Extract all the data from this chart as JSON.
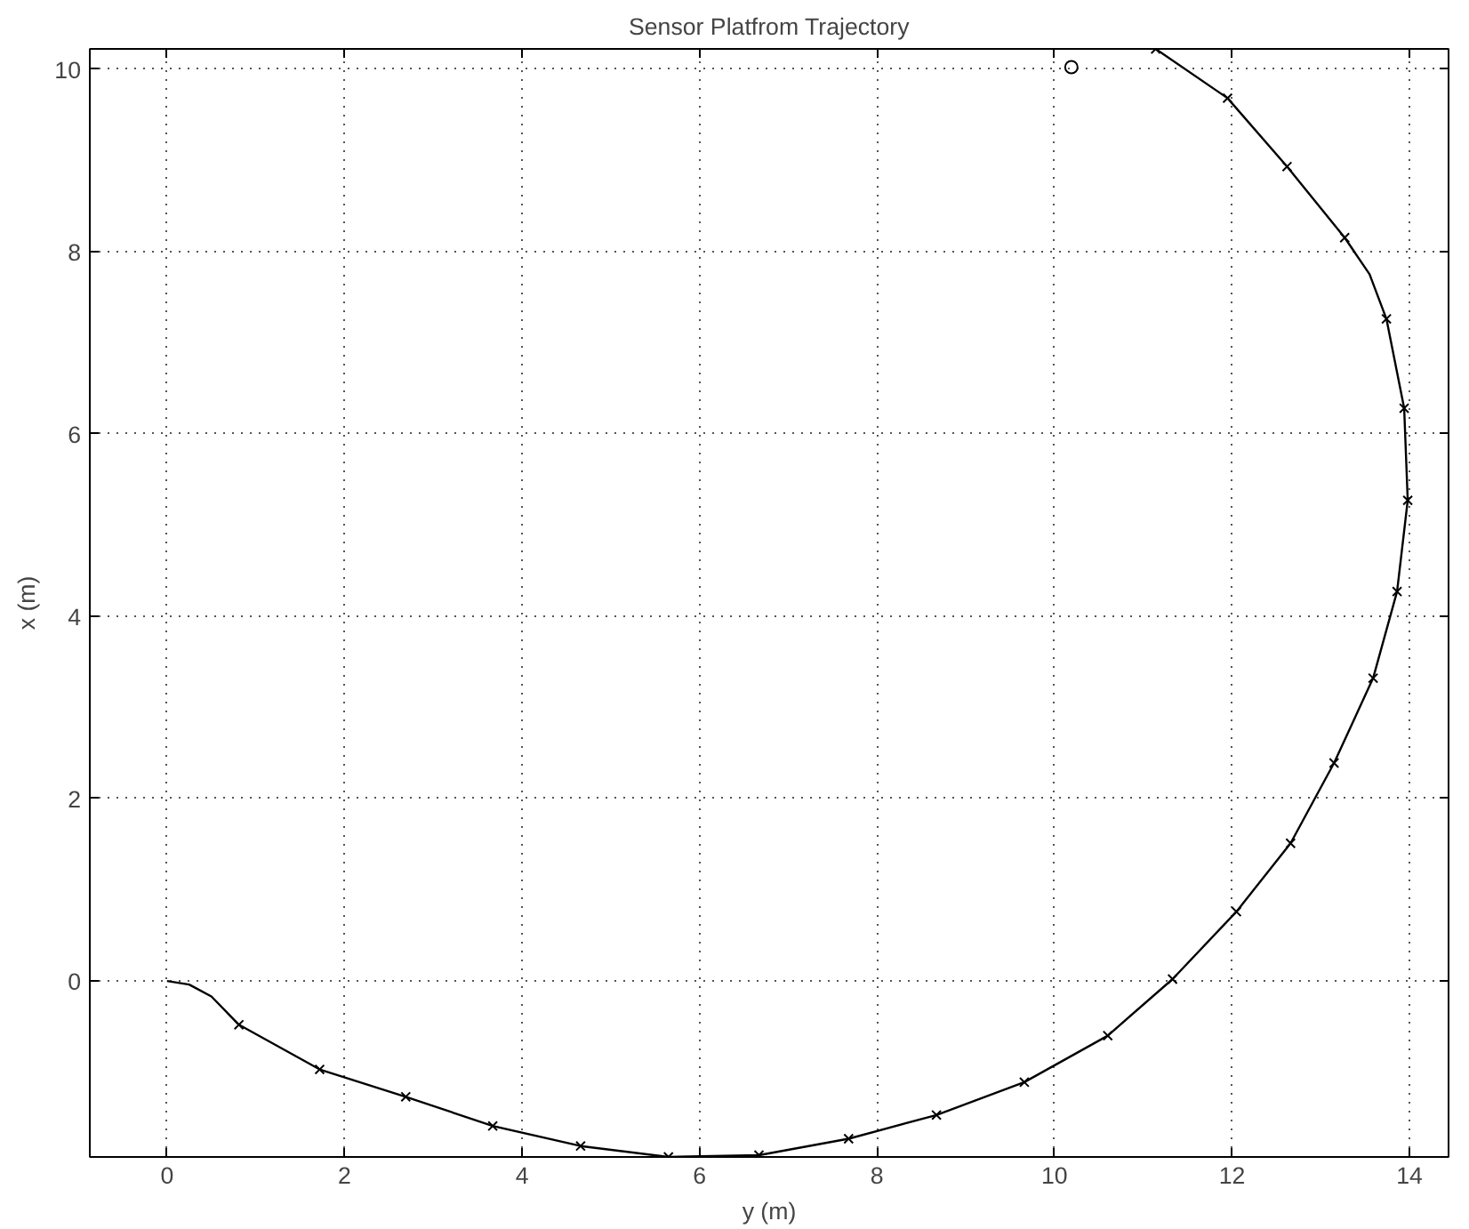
{
  "chart_data": {
    "type": "line",
    "title": "Sensor Platfrom Trajectory",
    "xlabel": "y (m)",
    "ylabel": "x (m)",
    "xlim": [
      -0.87,
      14.44
    ],
    "ylim": [
      -1.93,
      10.22
    ],
    "xticks": [
      0,
      2,
      4,
      6,
      8,
      10,
      12,
      14
    ],
    "yticks": [
      0,
      2,
      4,
      6,
      8,
      10
    ],
    "grid": true,
    "series": [
      {
        "color": "#000000",
        "marker": "none",
        "x": [
          0,
          0.25,
          0.5,
          0.81,
          1.72,
          2.69,
          3.67,
          4.66,
          5.65,
          6.67,
          7.68,
          8.67,
          9.66,
          10.6,
          11.33,
          12.05,
          12.66,
          13.15,
          13.59,
          13.86,
          13.98,
          13.94,
          13.74,
          13.55,
          13.27,
          12.62,
          11.95,
          11.14
        ],
        "values": [
          0,
          -0.04,
          -0.17,
          -0.48,
          -0.97,
          -1.27,
          -1.59,
          -1.81,
          -1.93,
          -1.91,
          -1.73,
          -1.47,
          -1.11,
          -0.6,
          0.02,
          0.76,
          1.51,
          2.39,
          3.32,
          4.27,
          5.27,
          6.28,
          7.26,
          7.75,
          8.15,
          8.93,
          9.68,
          10.22
        ]
      },
      {
        "type": "scatter",
        "color": "#000000",
        "marker": "cross",
        "x": [
          0.81,
          1.72,
          2.69,
          3.67,
          4.66,
          5.65,
          6.67,
          7.68,
          8.67,
          9.66,
          10.6,
          11.33,
          12.05,
          12.66,
          13.15,
          13.59,
          13.86,
          13.98,
          13.94,
          13.74,
          13.27,
          12.62,
          11.95,
          11.14
        ],
        "values": [
          -0.48,
          -0.97,
          -1.27,
          -1.59,
          -1.81,
          -1.93,
          -1.91,
          -1.73,
          -1.47,
          -1.11,
          -0.6,
          0.02,
          0.76,
          1.51,
          2.39,
          3.32,
          4.27,
          5.27,
          6.28,
          7.26,
          8.15,
          8.93,
          9.68,
          10.22
        ]
      },
      {
        "type": "scatter",
        "color": "#000000",
        "marker": "circle",
        "x": [
          10.19
        ],
        "values": [
          10.02
        ]
      }
    ]
  }
}
